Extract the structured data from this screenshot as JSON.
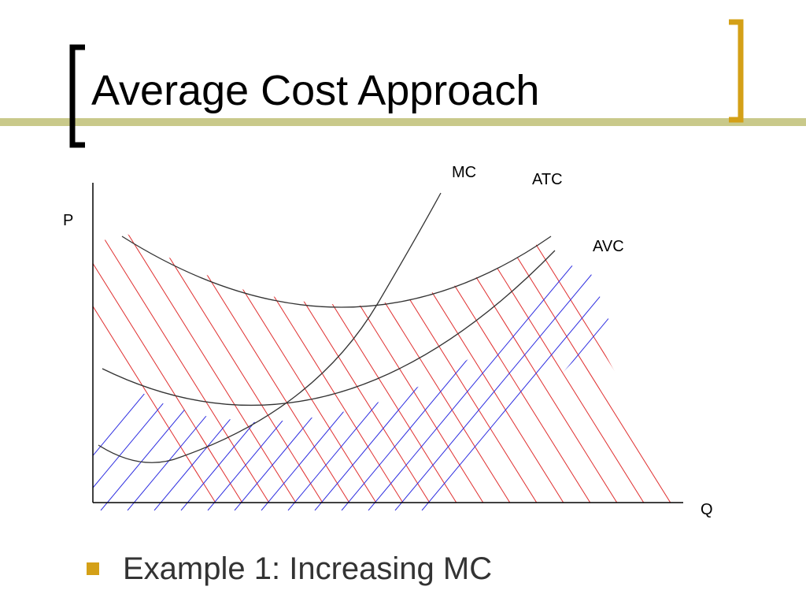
{
  "slide": {
    "title": "Average Cost Approach",
    "bullet": "Example 1: Increasing MC"
  },
  "diagram": {
    "y_axis_label": "P",
    "x_axis_label": "Q",
    "curves": {
      "mc": "MC",
      "atc": "ATC",
      "avc": "AVC"
    }
  },
  "colors": {
    "accent": "#D4A017",
    "accent_bar": "#C9C98A",
    "red_hatch": "#E03030",
    "blue_hatch": "#2C2CE0",
    "curve": "#333333"
  }
}
